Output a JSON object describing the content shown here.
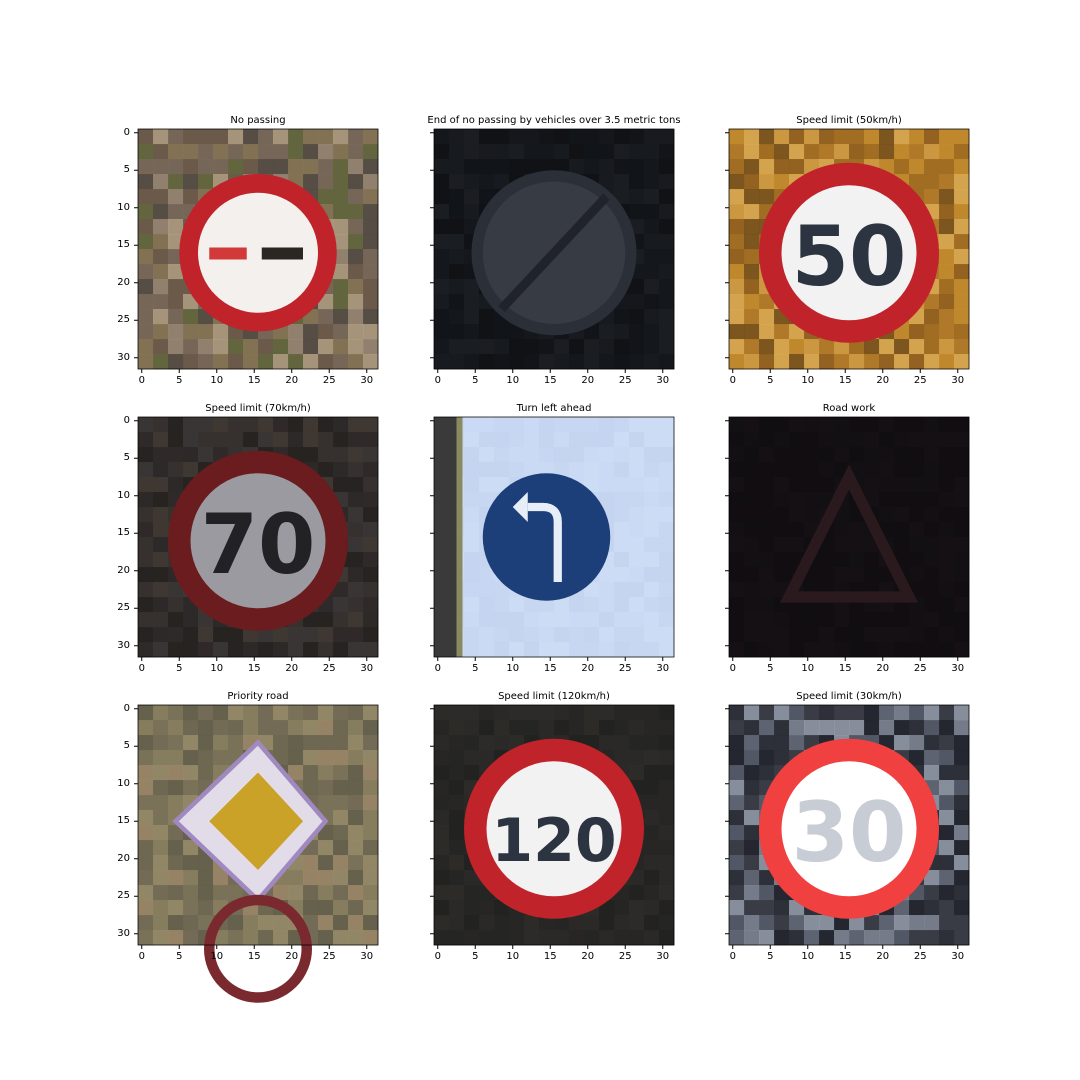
{
  "figure": {
    "tick_labels": [
      "0",
      "5",
      "10",
      "15",
      "20",
      "25",
      "30"
    ],
    "panels": [
      {
        "title": "No passing",
        "sign": "no-passing",
        "background": "leafy-foliage",
        "y_labels_visible": true
      },
      {
        "title": "End of no passing by vehicles over 3.5 metric tons",
        "sign": "end-no-passing-trucks",
        "background": "dark-night",
        "y_labels_visible": false
      },
      {
        "title": "Speed limit (50km/h)",
        "sign": "speed-limit",
        "number": "50",
        "background": "autumn-foliage",
        "y_labels_visible": false
      },
      {
        "title": "Speed limit (70km/h)",
        "sign": "speed-limit-dark",
        "number": "70",
        "background": "dark-foliage",
        "y_labels_visible": true
      },
      {
        "title": "Turn left ahead",
        "sign": "turn-left-ahead",
        "background": "sky",
        "y_labels_visible": false
      },
      {
        "title": "Road work",
        "sign": "road-work-dark",
        "background": "very-dark",
        "y_labels_visible": false
      },
      {
        "title": "Priority road",
        "sign": "priority-road",
        "background": "dry-grass",
        "y_labels_visible": true
      },
      {
        "title": "Speed limit (120km/h)",
        "sign": "speed-limit",
        "number": "120",
        "background": "dark-gray",
        "y_labels_visible": false
      },
      {
        "title": "Speed limit (30km/h)",
        "sign": "speed-limit-bright",
        "number": "30",
        "background": "bright-street",
        "y_labels_visible": false
      }
    ]
  },
  "colors": {
    "red": "#c0232a",
    "blue": "#1c3f7a",
    "sky": "#c9d9f4",
    "yellow": "#c9a227"
  }
}
